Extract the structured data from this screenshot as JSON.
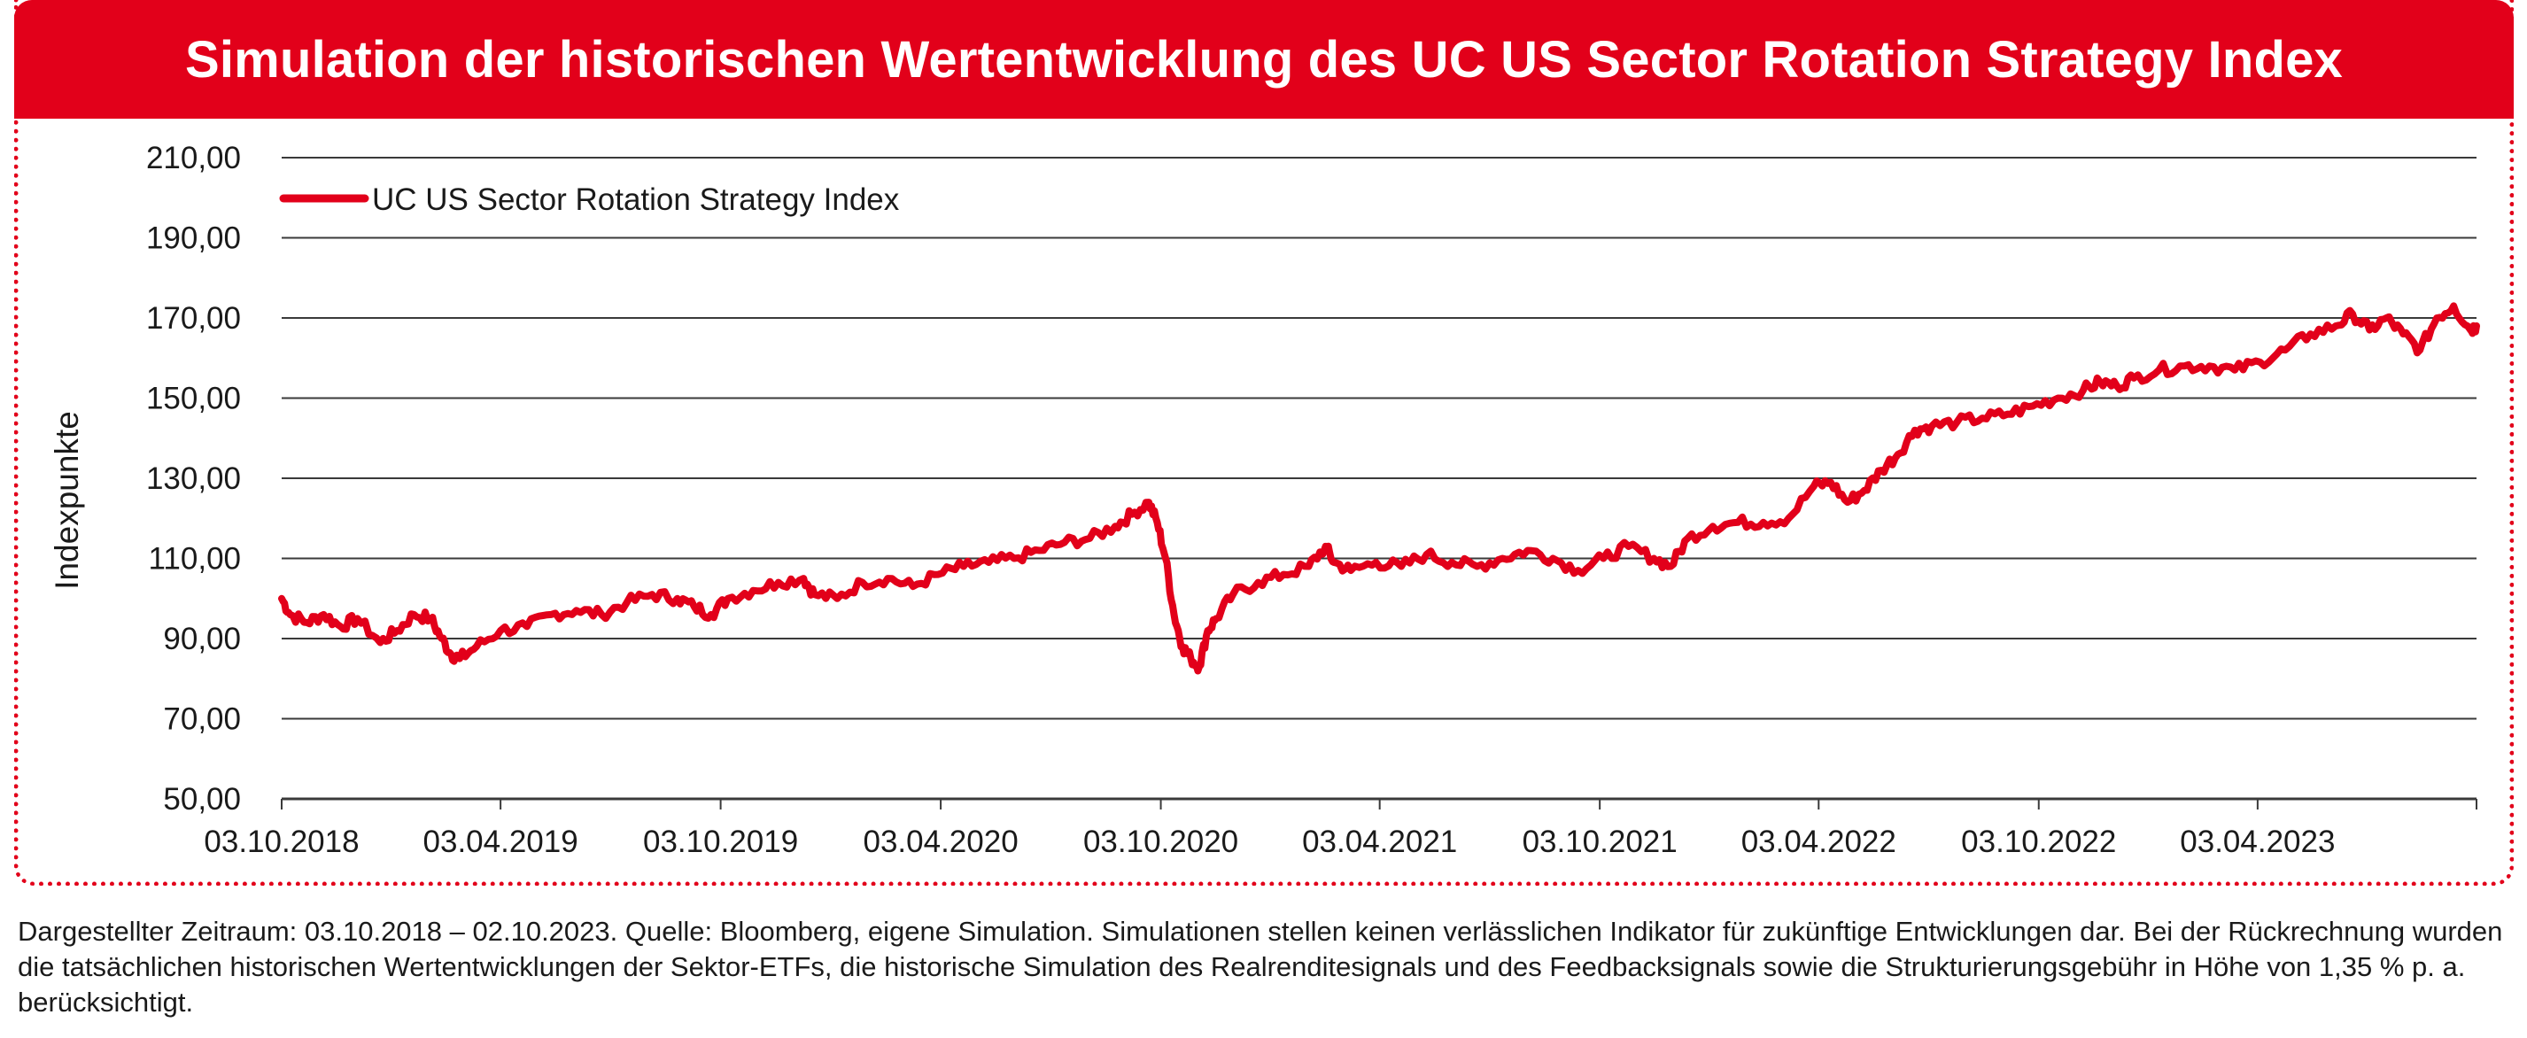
{
  "title": "Simulation der historischen Wertentwicklung des UC US Sector Rotation Strategy Index",
  "footnote": "Dargestellter Zeitraum: 03.10.2018 – 02.10.2023. Quelle: Bloomberg, eigene Simulation. Simulationen stellen keinen verlässlichen Indikator für zukünftige Entwicklungen dar. Bei der Rückrechnung wurden die tatsächlichen historischen Wertentwicklungen der Sektor-ETFs, die historische Simulation des Realrenditesignals und des Feedbacksignals sowie die Strukturierungsgebühr in Höhe von 1,35 % p. a. berücksichtigt.",
  "colors": {
    "accent": "#e2001a",
    "grid": "#3a3a3a",
    "text": "#1a1a1a"
  },
  "chart_data": {
    "type": "line",
    "title": "Simulation der historischen Wertentwicklung des UC US Sector Rotation Strategy Index",
    "xlabel": "",
    "ylabel": "Indexpunkte",
    "ylim": [
      50,
      210
    ],
    "yticks": [
      "50,00",
      "70,00",
      "90,00",
      "110,00",
      "130,00",
      "150,00",
      "170,00",
      "190,00",
      "210,00"
    ],
    "xticks": [
      "03.10.2018",
      "03.04.2019",
      "03.10.2019",
      "03.04.2020",
      "03.10.2020",
      "03.04.2021",
      "03.10.2021",
      "03.04.2022",
      "03.10.2022",
      "03.04.2023"
    ],
    "xrange": [
      "03.10.2018",
      "02.10.2023"
    ],
    "grid": true,
    "legend_position": "top-left",
    "series": [
      {
        "name": "UC US Sector Rotation Strategy Index",
        "color": "#e2001a",
        "points": [
          [
            "03.10.2018",
            100
          ],
          [
            "10.10.2018",
            96
          ],
          [
            "24.10.2018",
            94
          ],
          [
            "07.11.2018",
            96
          ],
          [
            "21.11.2018",
            93
          ],
          [
            "05.12.2018",
            95
          ],
          [
            "24.12.2018",
            89
          ],
          [
            "07.01.2019",
            92
          ],
          [
            "21.01.2019",
            96
          ],
          [
            "04.02.2019",
            95
          ],
          [
            "13.02.2019",
            90
          ],
          [
            "21.02.2019",
            86
          ],
          [
            "28.02.2019",
            85
          ],
          [
            "14.03.2019",
            88
          ],
          [
            "03.04.2019",
            92
          ],
          [
            "25.04.2019",
            93
          ],
          [
            "15.05.2019",
            96
          ],
          [
            "05.06.2019",
            97
          ],
          [
            "26.06.2019",
            96
          ],
          [
            "17.07.2019",
            99
          ],
          [
            "07.08.2019",
            101
          ],
          [
            "28.08.2019",
            100
          ],
          [
            "11.09.2019",
            98
          ],
          [
            "25.09.2019",
            96
          ],
          [
            "09.10.2019",
            100
          ],
          [
            "30.10.2019",
            102
          ],
          [
            "20.11.2019",
            104
          ],
          [
            "11.12.2019",
            105
          ],
          [
            "20.12.2019",
            101
          ],
          [
            "08.01.2020",
            100
          ],
          [
            "29.01.2020",
            104
          ],
          [
            "19.02.2020",
            105
          ],
          [
            "11.03.2020",
            103
          ],
          [
            "01.04.2020",
            106
          ],
          [
            "22.04.2020",
            108
          ],
          [
            "13.05.2020",
            109
          ],
          [
            "03.06.2020",
            110
          ],
          [
            "24.06.2020",
            112
          ],
          [
            "15.07.2020",
            114
          ],
          [
            "05.08.2020",
            115
          ],
          [
            "26.08.2020",
            118
          ],
          [
            "09.09.2020",
            121
          ],
          [
            "23.09.2020",
            124
          ],
          [
            "30.09.2020",
            119
          ],
          [
            "07.10.2020",
            110
          ],
          [
            "14.10.2020",
            96
          ],
          [
            "21.10.2020",
            88
          ],
          [
            "28.10.2020",
            85
          ],
          [
            "04.11.2020",
            83
          ],
          [
            "11.11.2020",
            92
          ],
          [
            "18.11.2020",
            95
          ],
          [
            "02.12.2020",
            101
          ],
          [
            "23.12.2020",
            104
          ],
          [
            "13.01.2021",
            106
          ],
          [
            "03.02.2021",
            108
          ],
          [
            "17.02.2021",
            113
          ],
          [
            "24.02.2021",
            109
          ],
          [
            "10.03.2021",
            107
          ],
          [
            "31.03.2021",
            109
          ],
          [
            "21.04.2021",
            108
          ],
          [
            "12.05.2021",
            111
          ],
          [
            "02.06.2021",
            109
          ],
          [
            "23.06.2021",
            108
          ],
          [
            "14.07.2021",
            110
          ],
          [
            "04.08.2021",
            112
          ],
          [
            "25.08.2021",
            110
          ],
          [
            "15.09.2021",
            107
          ],
          [
            "06.10.2021",
            110
          ],
          [
            "27.10.2021",
            113
          ],
          [
            "17.11.2021",
            110
          ],
          [
            "01.12.2021",
            108
          ],
          [
            "15.12.2021",
            115
          ],
          [
            "05.01.2022",
            118
          ],
          [
            "26.01.2022",
            119
          ],
          [
            "16.02.2022",
            119
          ],
          [
            "09.03.2022",
            120
          ],
          [
            "30.03.2022",
            128
          ],
          [
            "13.04.2022",
            129
          ],
          [
            "27.04.2022",
            124
          ],
          [
            "11.05.2022",
            127
          ],
          [
            "25.05.2022",
            132
          ],
          [
            "08.06.2022",
            136
          ],
          [
            "22.06.2022",
            142
          ],
          [
            "06.07.2022",
            143
          ],
          [
            "27.07.2022",
            144
          ],
          [
            "17.08.2022",
            145
          ],
          [
            "07.09.2022",
            146
          ],
          [
            "28.09.2022",
            148
          ],
          [
            "19.10.2022",
            150
          ],
          [
            "09.11.2022",
            152
          ],
          [
            "23.11.2022",
            154
          ],
          [
            "07.12.2022",
            153
          ],
          [
            "21.12.2022",
            155
          ],
          [
            "11.01.2023",
            157
          ],
          [
            "01.02.2023",
            158
          ],
          [
            "22.02.2023",
            158
          ],
          [
            "15.03.2023",
            157
          ],
          [
            "05.04.2023",
            159
          ],
          [
            "26.04.2023",
            162
          ],
          [
            "17.05.2023",
            166
          ],
          [
            "07.06.2023",
            168
          ],
          [
            "21.06.2023",
            171
          ],
          [
            "05.07.2023",
            167
          ],
          [
            "19.07.2023",
            170
          ],
          [
            "02.08.2023",
            166
          ],
          [
            "16.08.2023",
            162
          ],
          [
            "30.08.2023",
            170
          ],
          [
            "13.09.2023",
            173
          ],
          [
            "27.09.2023",
            167
          ],
          [
            "02.10.2023",
            168
          ]
        ]
      }
    ]
  }
}
